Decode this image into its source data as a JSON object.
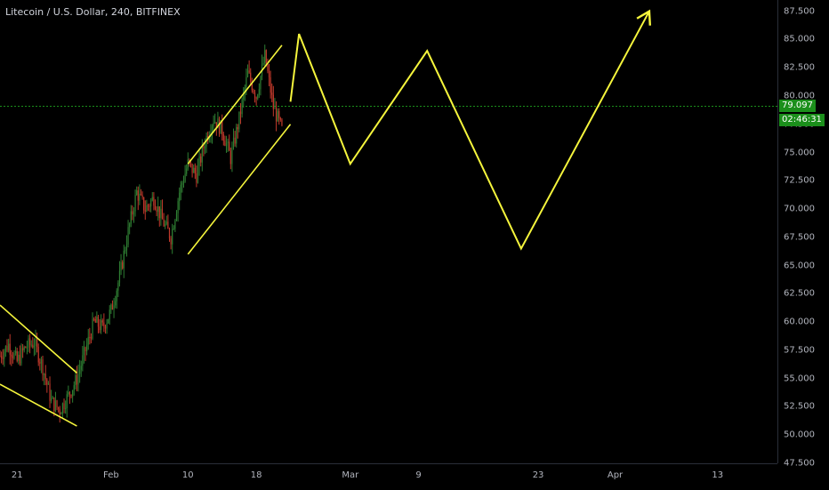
{
  "header": {
    "title": "Litecoin / U.S. Dollar, 240, BITFINEX"
  },
  "price_axis": {
    "ticks": [
      "87.500",
      "85.000",
      "82.500",
      "80.000",
      "77.500",
      "75.000",
      "72.500",
      "70.000",
      "67.500",
      "65.000",
      "62.500",
      "60.000",
      "57.500",
      "55.000",
      "52.500",
      "50.000",
      "47.500"
    ],
    "last_price": "79.097",
    "countdown": "02:46:31",
    "last_price_color": "#1b8f1b"
  },
  "time_axis": {
    "ticks": [
      "21",
      "Feb",
      "10",
      "18",
      "Mar",
      "9",
      "23",
      "Apr",
      "13"
    ]
  },
  "colors": {
    "up": "#2e7d32",
    "down": "#c0392b",
    "drawing": "#f5f53c",
    "background": "#000000"
  },
  "chart_data": {
    "type": "candlestick",
    "title": "Litecoin / U.S. Dollar, 240, BITFINEX",
    "ylim": [
      47.5,
      88.5
    ],
    "x_range": [
      "2019-01-19",
      "2019-04-20"
    ],
    "grid": false,
    "price_path": [
      [
        "2019-01-19",
        57.0
      ],
      [
        "2019-01-20",
        58.0
      ],
      [
        "2019-01-21",
        56.5
      ],
      [
        "2019-01-22",
        57.8
      ],
      [
        "2019-01-23",
        58.2
      ],
      [
        "2019-01-24",
        56.0
      ],
      [
        "2019-01-25",
        53.0
      ],
      [
        "2019-01-26",
        52.2
      ],
      [
        "2019-01-27",
        53.5
      ],
      [
        "2019-01-28",
        55.0
      ],
      [
        "2019-01-29",
        57.5
      ],
      [
        "2019-01-30",
        60.0
      ],
      [
        "2019-01-31",
        59.5
      ],
      [
        "2019-02-01",
        61.0
      ],
      [
        "2019-02-02",
        64.0
      ],
      [
        "2019-02-03",
        68.0
      ],
      [
        "2019-02-04",
        71.5
      ],
      [
        "2019-02-05",
        70.0
      ],
      [
        "2019-02-06",
        71.0
      ],
      [
        "2019-02-07",
        69.0
      ],
      [
        "2019-02-08",
        67.5
      ],
      [
        "2019-02-09",
        71.5
      ],
      [
        "2019-02-10",
        74.0
      ],
      [
        "2019-02-11",
        73.0
      ],
      [
        "2019-02-12",
        76.0
      ],
      [
        "2019-02-13",
        78.0
      ],
      [
        "2019-02-14",
        77.0
      ],
      [
        "2019-02-15",
        74.5
      ],
      [
        "2019-02-16",
        78.0
      ],
      [
        "2019-02-17",
        82.0
      ],
      [
        "2019-02-18",
        80.0
      ],
      [
        "2019-02-19",
        83.5
      ],
      [
        "2019-02-20",
        79.0
      ],
      [
        "2019-02-21",
        77.0
      ]
    ],
    "last_price": 79.097,
    "drawings": [
      {
        "kind": "channel-line",
        "points": [
          [
            "2019-01-19",
            61.5
          ],
          [
            "2019-01-28",
            55.5
          ]
        ]
      },
      {
        "kind": "channel-line",
        "points": [
          [
            "2019-01-19",
            54.5
          ],
          [
            "2019-01-28",
            50.8
          ]
        ]
      },
      {
        "kind": "channel-line",
        "points": [
          [
            "2019-02-10",
            74.0
          ],
          [
            "2019-02-21",
            84.5
          ]
        ]
      },
      {
        "kind": "channel-line",
        "points": [
          [
            "2019-02-10",
            66.0
          ],
          [
            "2019-02-22",
            77.5
          ]
        ]
      },
      {
        "kind": "projection",
        "points": [
          [
            "2019-02-22",
            79.5
          ],
          [
            "2019-02-23",
            85.5
          ],
          [
            "2019-03-01",
            74.0
          ],
          [
            "2019-03-10",
            84.0
          ],
          [
            "2019-03-21",
            66.5
          ],
          [
            "2019-04-05",
            87.5
          ]
        ]
      }
    ]
  }
}
